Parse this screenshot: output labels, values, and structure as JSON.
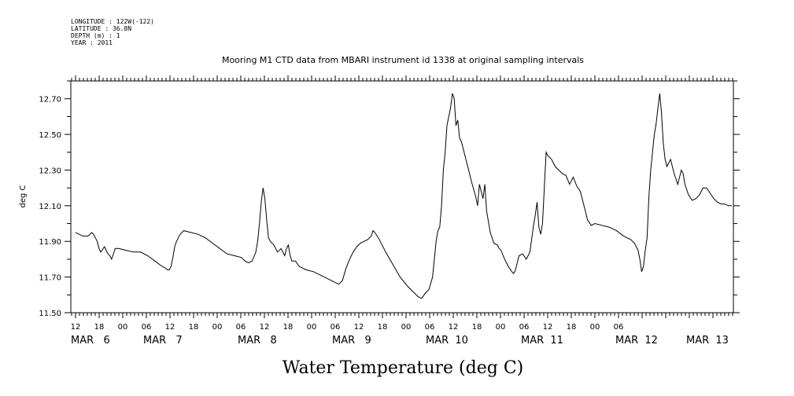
{
  "header": {
    "lines": [
      "LONGITUDE : 122W(-122)",
      "LATITUDE : 36.8N",
      "DEPTH (m) : 1",
      "YEAR : 2011"
    ]
  },
  "chart_data": {
    "type": "line",
    "title": "Mooring M1 CTD data from MBARI instrument id 1338 at original sampling intervals",
    "xlabel": "Water Temperature (deg C)",
    "ylabel": "deg C",
    "ylim": [
      11.5,
      12.8
    ],
    "x_unit": "hours",
    "x_range_hours": [
      0,
      140
    ],
    "y_ticks": [
      "11.50",
      "11.70",
      "11.90",
      "12.10",
      "12.30",
      "12.50",
      "12.70"
    ],
    "x_hour_ticks": [
      {
        "h": 0,
        "label": "12"
      },
      {
        "h": 6,
        "label": "18"
      },
      {
        "h": 12,
        "label": "00"
      },
      {
        "h": 18,
        "label": "06"
      },
      {
        "h": 24,
        "label": "12"
      },
      {
        "h": 30,
        "label": "18"
      },
      {
        "h": 36,
        "label": "00"
      },
      {
        "h": 42,
        "label": "06"
      },
      {
        "h": 48,
        "label": "12"
      },
      {
        "h": 54,
        "label": "18"
      },
      {
        "h": 60,
        "label": "00"
      },
      {
        "h": 66,
        "label": "06"
      },
      {
        "h": 72,
        "label": "12"
      },
      {
        "h": 78,
        "label": "18"
      },
      {
        "h": 84,
        "label": "00"
      },
      {
        "h": 90,
        "label": "06"
      },
      {
        "h": 96,
        "label": "12"
      },
      {
        "h": 102,
        "label": "18"
      },
      {
        "h": 108,
        "label": "00"
      },
      {
        "h": 114,
        "label": "06"
      },
      {
        "h": 120,
        "label": "12"
      },
      {
        "h": 126,
        "label": "18"
      },
      {
        "h": 132,
        "label": "00"
      },
      {
        "h": 138,
        "label": "06"
      }
    ],
    "x_day_labels": [
      {
        "h": 0,
        "label": "MAR   6"
      },
      {
        "h": 9,
        "label": "MAR   7"
      },
      {
        "h": 21,
        "label": "MAR   8"
      },
      {
        "h": 33,
        "label": "MAR   9"
      },
      {
        "h": 45,
        "label": "MAR  10"
      },
      {
        "h": 57,
        "label": "MAR  11"
      },
      {
        "h": 69,
        "label": "MAR  12"
      },
      {
        "h": 78,
        "label": "MAR  13"
      }
    ],
    "series": [
      {
        "color": "#000000",
        "points": [
          [
            0,
            11.95
          ],
          [
            2,
            11.93
          ],
          [
            3.5,
            11.93
          ],
          [
            4.5,
            11.95
          ],
          [
            5,
            11.94
          ],
          [
            6,
            11.9
          ],
          [
            6.5,
            11.86
          ],
          [
            7,
            11.84
          ],
          [
            8,
            11.87
          ],
          [
            9,
            11.83
          ],
          [
            9.5,
            11.82
          ],
          [
            10,
            11.8
          ],
          [
            10.5,
            11.83
          ],
          [
            11,
            11.86
          ],
          [
            12,
            11.86
          ],
          [
            14,
            11.85
          ],
          [
            16,
            11.84
          ],
          [
            18,
            11.84
          ],
          [
            20,
            11.82
          ],
          [
            22,
            11.79
          ],
          [
            24,
            11.76
          ],
          [
            25,
            11.75
          ],
          [
            25.5,
            11.74
          ],
          [
            26,
            11.74
          ],
          [
            26.5,
            11.76
          ],
          [
            27,
            11.81
          ],
          [
            27.5,
            11.87
          ],
          [
            28,
            11.9
          ],
          [
            29,
            11.94
          ],
          [
            30,
            11.96
          ],
          [
            32,
            11.95
          ],
          [
            34,
            11.94
          ],
          [
            36,
            11.92
          ],
          [
            38,
            11.89
          ],
          [
            40,
            11.86
          ],
          [
            42,
            11.83
          ],
          [
            44,
            11.82
          ],
          [
            46,
            11.81
          ],
          [
            47,
            11.79
          ],
          [
            48,
            11.78
          ],
          [
            49,
            11.79
          ],
          [
            50,
            11.84
          ],
          [
            50.5,
            11.9
          ],
          [
            51,
            12.0
          ],
          [
            51.5,
            12.12
          ],
          [
            52,
            12.2
          ],
          [
            52.5,
            12.14
          ],
          [
            53,
            12.02
          ],
          [
            53.5,
            11.92
          ],
          [
            54,
            11.9
          ],
          [
            55,
            11.88
          ],
          [
            56,
            11.84
          ],
          [
            57,
            11.86
          ],
          [
            58,
            11.82
          ],
          [
            58.5,
            11.86
          ],
          [
            59,
            11.88
          ],
          [
            59.5,
            11.82
          ],
          [
            60,
            11.79
          ],
          [
            61,
            11.79
          ],
          [
            62,
            11.76
          ],
          [
            64,
            11.74
          ],
          [
            66,
            11.73
          ],
          [
            68,
            11.71
          ],
          [
            70,
            11.69
          ],
          [
            72,
            11.67
          ],
          [
            73,
            11.66
          ],
          [
            74,
            11.68
          ],
          [
            75,
            11.75
          ],
          [
            76,
            11.8
          ],
          [
            77,
            11.84
          ],
          [
            78,
            11.87
          ],
          [
            79,
            11.89
          ],
          [
            80,
            11.9
          ],
          [
            81,
            11.91
          ],
          [
            82,
            11.93
          ],
          [
            82.5,
            11.96
          ],
          [
            83,
            11.95
          ],
          [
            84,
            11.92
          ],
          [
            86,
            11.84
          ],
          [
            88,
            11.77
          ],
          [
            90,
            11.7
          ],
          [
            92,
            11.65
          ],
          [
            94,
            11.61
          ],
          [
            95,
            11.59
          ],
          [
            96,
            11.58
          ],
          [
            97,
            11.61
          ],
          [
            98,
            11.63
          ],
          [
            99,
            11.7
          ],
          [
            100,
            11.9
          ],
          [
            100.5,
            11.96
          ],
          [
            101,
            11.98
          ],
          [
            101.5,
            12.1
          ],
          [
            102,
            12.3
          ],
          [
            102.5,
            12.4
          ],
          [
            103,
            12.55
          ],
          [
            103.5,
            12.6
          ],
          [
            104,
            12.65
          ],
          [
            104.5,
            12.73
          ],
          [
            105,
            12.7
          ],
          [
            105.5,
            12.55
          ],
          [
            106,
            12.58
          ],
          [
            106.5,
            12.48
          ],
          [
            107,
            12.46
          ],
          [
            108,
            12.38
          ],
          [
            109,
            12.3
          ],
          [
            110,
            12.22
          ],
          [
            111,
            12.15
          ],
          [
            111.5,
            12.1
          ],
          [
            112,
            12.22
          ],
          [
            112.5,
            12.18
          ],
          [
            113,
            12.14
          ],
          [
            113.5,
            12.22
          ],
          [
            114,
            12.07
          ],
          [
            115,
            11.95
          ],
          [
            116,
            11.89
          ],
          [
            117,
            11.88
          ],
          [
            117.5,
            11.86
          ],
          [
            118,
            11.85
          ],
          [
            119,
            11.8
          ],
          [
            120,
            11.76
          ],
          [
            121,
            11.73
          ],
          [
            121.5,
            11.72
          ],
          [
            122,
            11.74
          ],
          [
            123,
            11.82
          ],
          [
            124,
            11.83
          ],
          [
            125,
            11.8
          ],
          [
            126,
            11.84
          ],
          [
            127,
            11.99
          ],
          [
            127.5,
            12.05
          ],
          [
            128,
            12.12
          ],
          [
            128.5,
            11.98
          ],
          [
            129,
            11.94
          ],
          [
            129.5,
            12.0
          ],
          [
            130,
            12.2
          ],
          [
            130.5,
            12.4
          ],
          [
            131,
            12.38
          ],
          [
            132,
            12.36
          ],
          [
            133,
            12.32
          ],
          [
            134,
            12.3
          ],
          [
            135,
            12.28
          ],
          [
            136,
            12.27
          ],
          [
            137,
            12.22
          ],
          [
            138,
            12.26
          ],
          [
            139,
            12.21
          ],
          [
            140,
            12.18
          ],
          [
            141,
            12.1
          ],
          [
            142,
            12.02
          ],
          [
            143,
            11.99
          ],
          [
            144,
            12.0
          ],
          [
            146,
            11.99
          ],
          [
            148,
            11.98
          ],
          [
            150,
            11.96
          ],
          [
            152,
            11.93
          ],
          [
            154,
            11.91
          ],
          [
            155,
            11.89
          ],
          [
            156,
            11.85
          ],
          [
            156.5,
            11.8
          ],
          [
            157,
            11.73
          ],
          [
            157.5,
            11.76
          ],
          [
            158,
            11.85
          ],
          [
            158.5,
            11.92
          ],
          [
            159,
            12.15
          ],
          [
            159.5,
            12.3
          ],
          [
            160,
            12.4
          ],
          [
            160.5,
            12.5
          ],
          [
            161,
            12.56
          ],
          [
            161.5,
            12.65
          ],
          [
            162,
            12.73
          ],
          [
            162.5,
            12.62
          ],
          [
            163,
            12.45
          ],
          [
            163.5,
            12.36
          ],
          [
            164,
            12.32
          ],
          [
            165,
            12.36
          ],
          [
            166,
            12.28
          ],
          [
            167,
            12.22
          ],
          [
            168,
            12.3
          ],
          [
            168.5,
            12.28
          ],
          [
            169,
            12.22
          ],
          [
            170,
            12.16
          ],
          [
            171,
            12.13
          ],
          [
            172,
            12.14
          ],
          [
            173,
            12.16
          ],
          [
            174,
            12.2
          ],
          [
            175,
            12.2
          ],
          [
            176,
            12.17
          ],
          [
            177,
            12.14
          ],
          [
            178,
            12.12
          ],
          [
            179,
            12.11
          ],
          [
            180,
            12.11
          ],
          [
            181,
            12.1
          ],
          [
            182,
            12.1
          ]
        ]
      }
    ]
  }
}
